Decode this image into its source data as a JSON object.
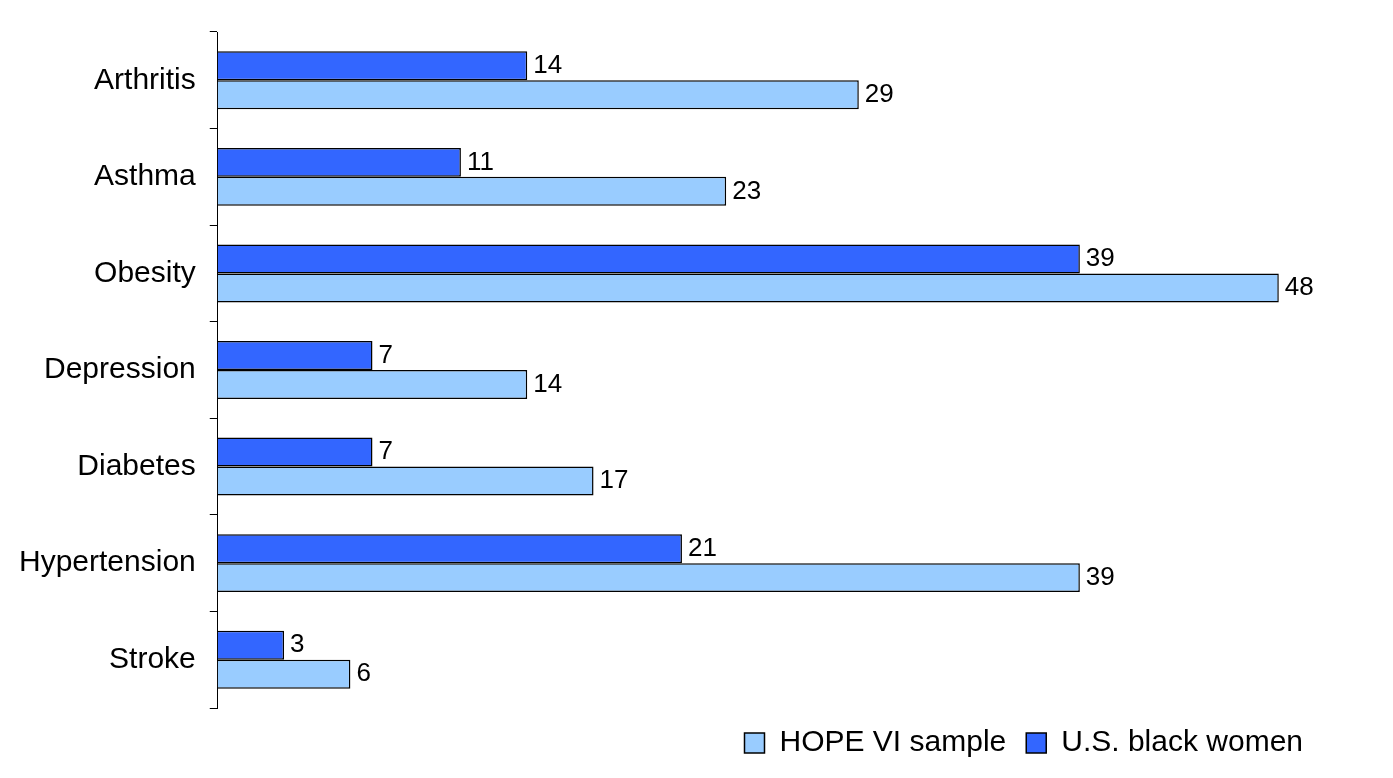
{
  "chart_data": {
    "type": "bar",
    "orientation": "horizontal",
    "categories": [
      "Arthritis",
      "Asthma",
      "Obesity",
      "Depression",
      "Diabetes",
      "Hypertension",
      "Stroke"
    ],
    "series": [
      {
        "name": "U.S. black women",
        "color": "#3366ff",
        "values": [
          14,
          11,
          39,
          7,
          7,
          21,
          3
        ]
      },
      {
        "name": "HOPE VI sample",
        "color": "#99ccff",
        "values": [
          29,
          23,
          48,
          14,
          17,
          39,
          6
        ]
      }
    ],
    "data_labels": true,
    "legend": "bottom right"
  }
}
